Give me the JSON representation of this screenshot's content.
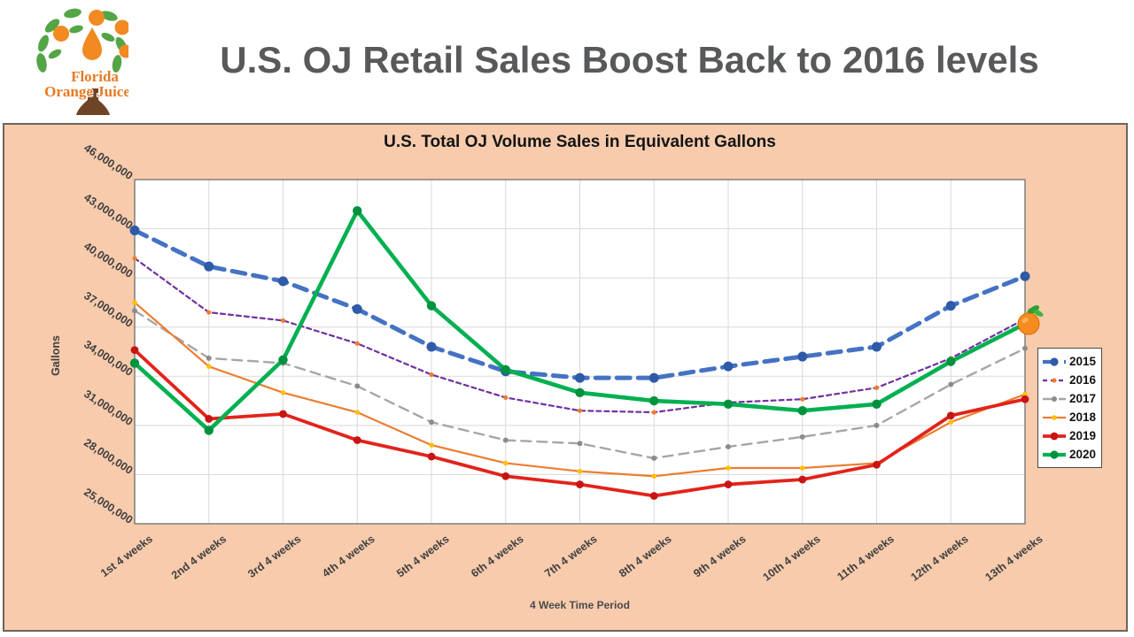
{
  "header": {
    "title": "U.S. OJ Retail Sales Boost Back to 2016 levels"
  },
  "logo": {
    "line1": "Florida",
    "line2": "Orange Juice™"
  },
  "chart_data": {
    "type": "line",
    "title": "U.S. Total OJ Volume Sales in Equivalent Gallons",
    "xlabel": "4 Week Time Period",
    "ylabel": "Gallons",
    "categories": [
      "1st 4 weeks",
      "2nd 4 weeks",
      "3rd 4 weeks",
      "4th 4 weeks",
      "5th 4 weeks",
      "6th 4 weeks",
      "7th 4 weeks",
      "8th 4 weeks",
      "9th 4 weeks",
      "10th 4 weeks",
      "11th 4 weeks",
      "12th 4 weeks",
      "13th 4 weeks"
    ],
    "y_tick_labels": [
      "46,000,000",
      "43,000,000",
      "40,000,000",
      "37,000,000",
      "34,000,000",
      "31,000,000",
      "28,000,000",
      "25,000,000"
    ],
    "y_tick_values_millions": [
      46,
      43,
      40,
      37,
      34,
      31,
      28,
      25
    ],
    "y_gridline_values_millions": [
      43,
      40,
      37,
      34,
      31,
      28
    ],
    "ylim_millions": [
      25,
      46
    ],
    "grid": true,
    "legend_position": "right",
    "plot_bg": "#FFFFFF",
    "panel_bg": "#F8CBAD",
    "gridline_color": "#D9D9D9",
    "series": [
      {
        "name": "2015",
        "color": "#4472C4",
        "marker_color": "#2E5AA7",
        "line_width": 5,
        "dash": "15 9",
        "marker_radius": 5.5,
        "values_millions": [
          42.9,
          40.7,
          39.8,
          38.1,
          35.8,
          34.3,
          33.9,
          33.9,
          34.6,
          35.2,
          35.8,
          38.3,
          40.1
        ]
      },
      {
        "name": "2016",
        "color": "#7030A0",
        "marker_color": "#ED7D31",
        "line_width": 2.2,
        "dash": "5 4",
        "marker_radius": 2.6,
        "values_millions": [
          41.2,
          37.9,
          37.4,
          36.0,
          34.1,
          32.7,
          31.9,
          31.8,
          32.4,
          32.6,
          33.3,
          35.1,
          37.5
        ]
      },
      {
        "name": "2017",
        "color": "#A6A6A6",
        "marker_color": "#8C8C8C",
        "line_width": 2.4,
        "dash": "11 7",
        "marker_radius": 3,
        "values_millions": [
          38.0,
          35.1,
          34.8,
          33.4,
          31.2,
          30.1,
          29.9,
          29.0,
          29.7,
          30.3,
          31.0,
          33.5,
          35.7
        ]
      },
      {
        "name": "2018",
        "color": "#ED7D31",
        "marker_color": "#FFC000",
        "line_width": 2.2,
        "dash": "",
        "marker_radius": 2.8,
        "values_millions": [
          38.5,
          34.6,
          33.0,
          31.8,
          29.8,
          28.7,
          28.2,
          27.9,
          28.4,
          28.4,
          28.7,
          31.2,
          32.9
        ]
      },
      {
        "name": "2019",
        "color": "#E2231A",
        "marker_color": "#C81414",
        "line_width": 3.8,
        "dash": "",
        "marker_radius": 4.4,
        "values_millions": [
          35.6,
          31.4,
          31.7,
          30.1,
          29.1,
          27.9,
          27.4,
          26.7,
          27.4,
          27.7,
          28.6,
          31.6,
          32.6
        ]
      },
      {
        "name": "2020",
        "color": "#00B050",
        "marker_color": "#00913F",
        "line_width": 4.6,
        "dash": "",
        "marker_radius": 5.2,
        "values_millions": [
          34.8,
          30.7,
          35.0,
          44.1,
          38.3,
          34.4,
          33.0,
          32.5,
          32.3,
          31.9,
          32.3,
          34.9,
          37.2
        ]
      }
    ],
    "end_decoration": "orange-fruit-icon"
  }
}
